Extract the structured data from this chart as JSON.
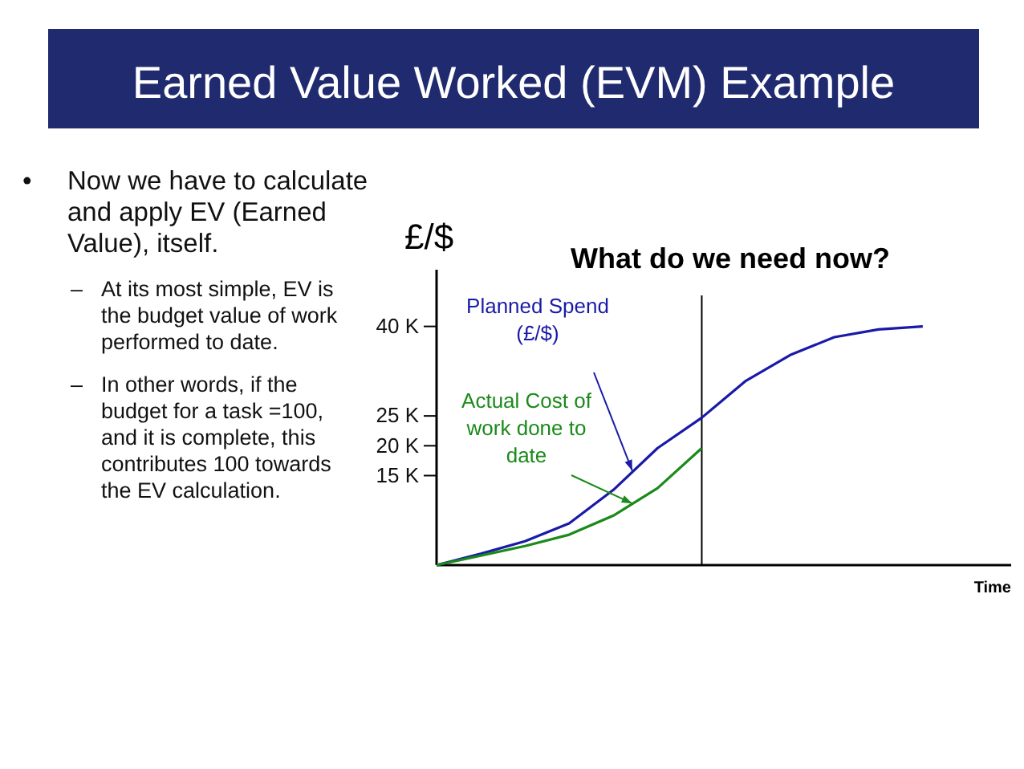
{
  "chart_data": {
    "type": "line",
    "title": "Earned Value Worked (EVM) Example",
    "subtitle": "What do we need now?",
    "xlabel": "Time",
    "ylabel": "£/$",
    "annotations": [
      "• Now we have to calculate and apply EV (Earned Value), itself.",
      "– At its most simple, EV is the budget value of work performed to date.",
      "– In other words, if the budget for a task =100, and it is complete, this contributes 100 towards the EV calculation."
    ],
    "categories": [
      null,
      null,
      null,
      null,
      null,
      null,
      null,
      null,
      null,
      null,
      null,
      null,
      null,
      null
    ],
    "series": [
      {
        "name": "Planned Spend (£/$)",
        "color": "#1a1aa8",
        "values": [
          0,
          1.9,
          4.0,
          7.0,
          12.6,
          19.6,
          24.7,
          30.9,
          35.2,
          38.2,
          39.5,
          40,
          null,
          null
        ]
      },
      {
        "name": "Actual Cost of work done to date",
        "color": "#1a8a1a",
        "values": [
          0,
          1.6,
          3.2,
          5.1,
          8.3,
          12.9,
          19.6,
          null,
          null,
          null,
          null,
          null,
          null,
          null
        ]
      }
    ],
    "ylim": [
      0,
      49.5
    ],
    "yticks": [
      {
        "value": 15,
        "label": "15 K"
      },
      {
        "value": 20,
        "label": "20 K"
      },
      {
        "value": 25,
        "label": "25 K"
      },
      {
        "value": 40,
        "label": "40 K"
      }
    ],
    "tick_labels": "y",
    "grid": false,
    "legend": "top left",
    "marker": "none",
    "line_style": "solid"
  }
}
